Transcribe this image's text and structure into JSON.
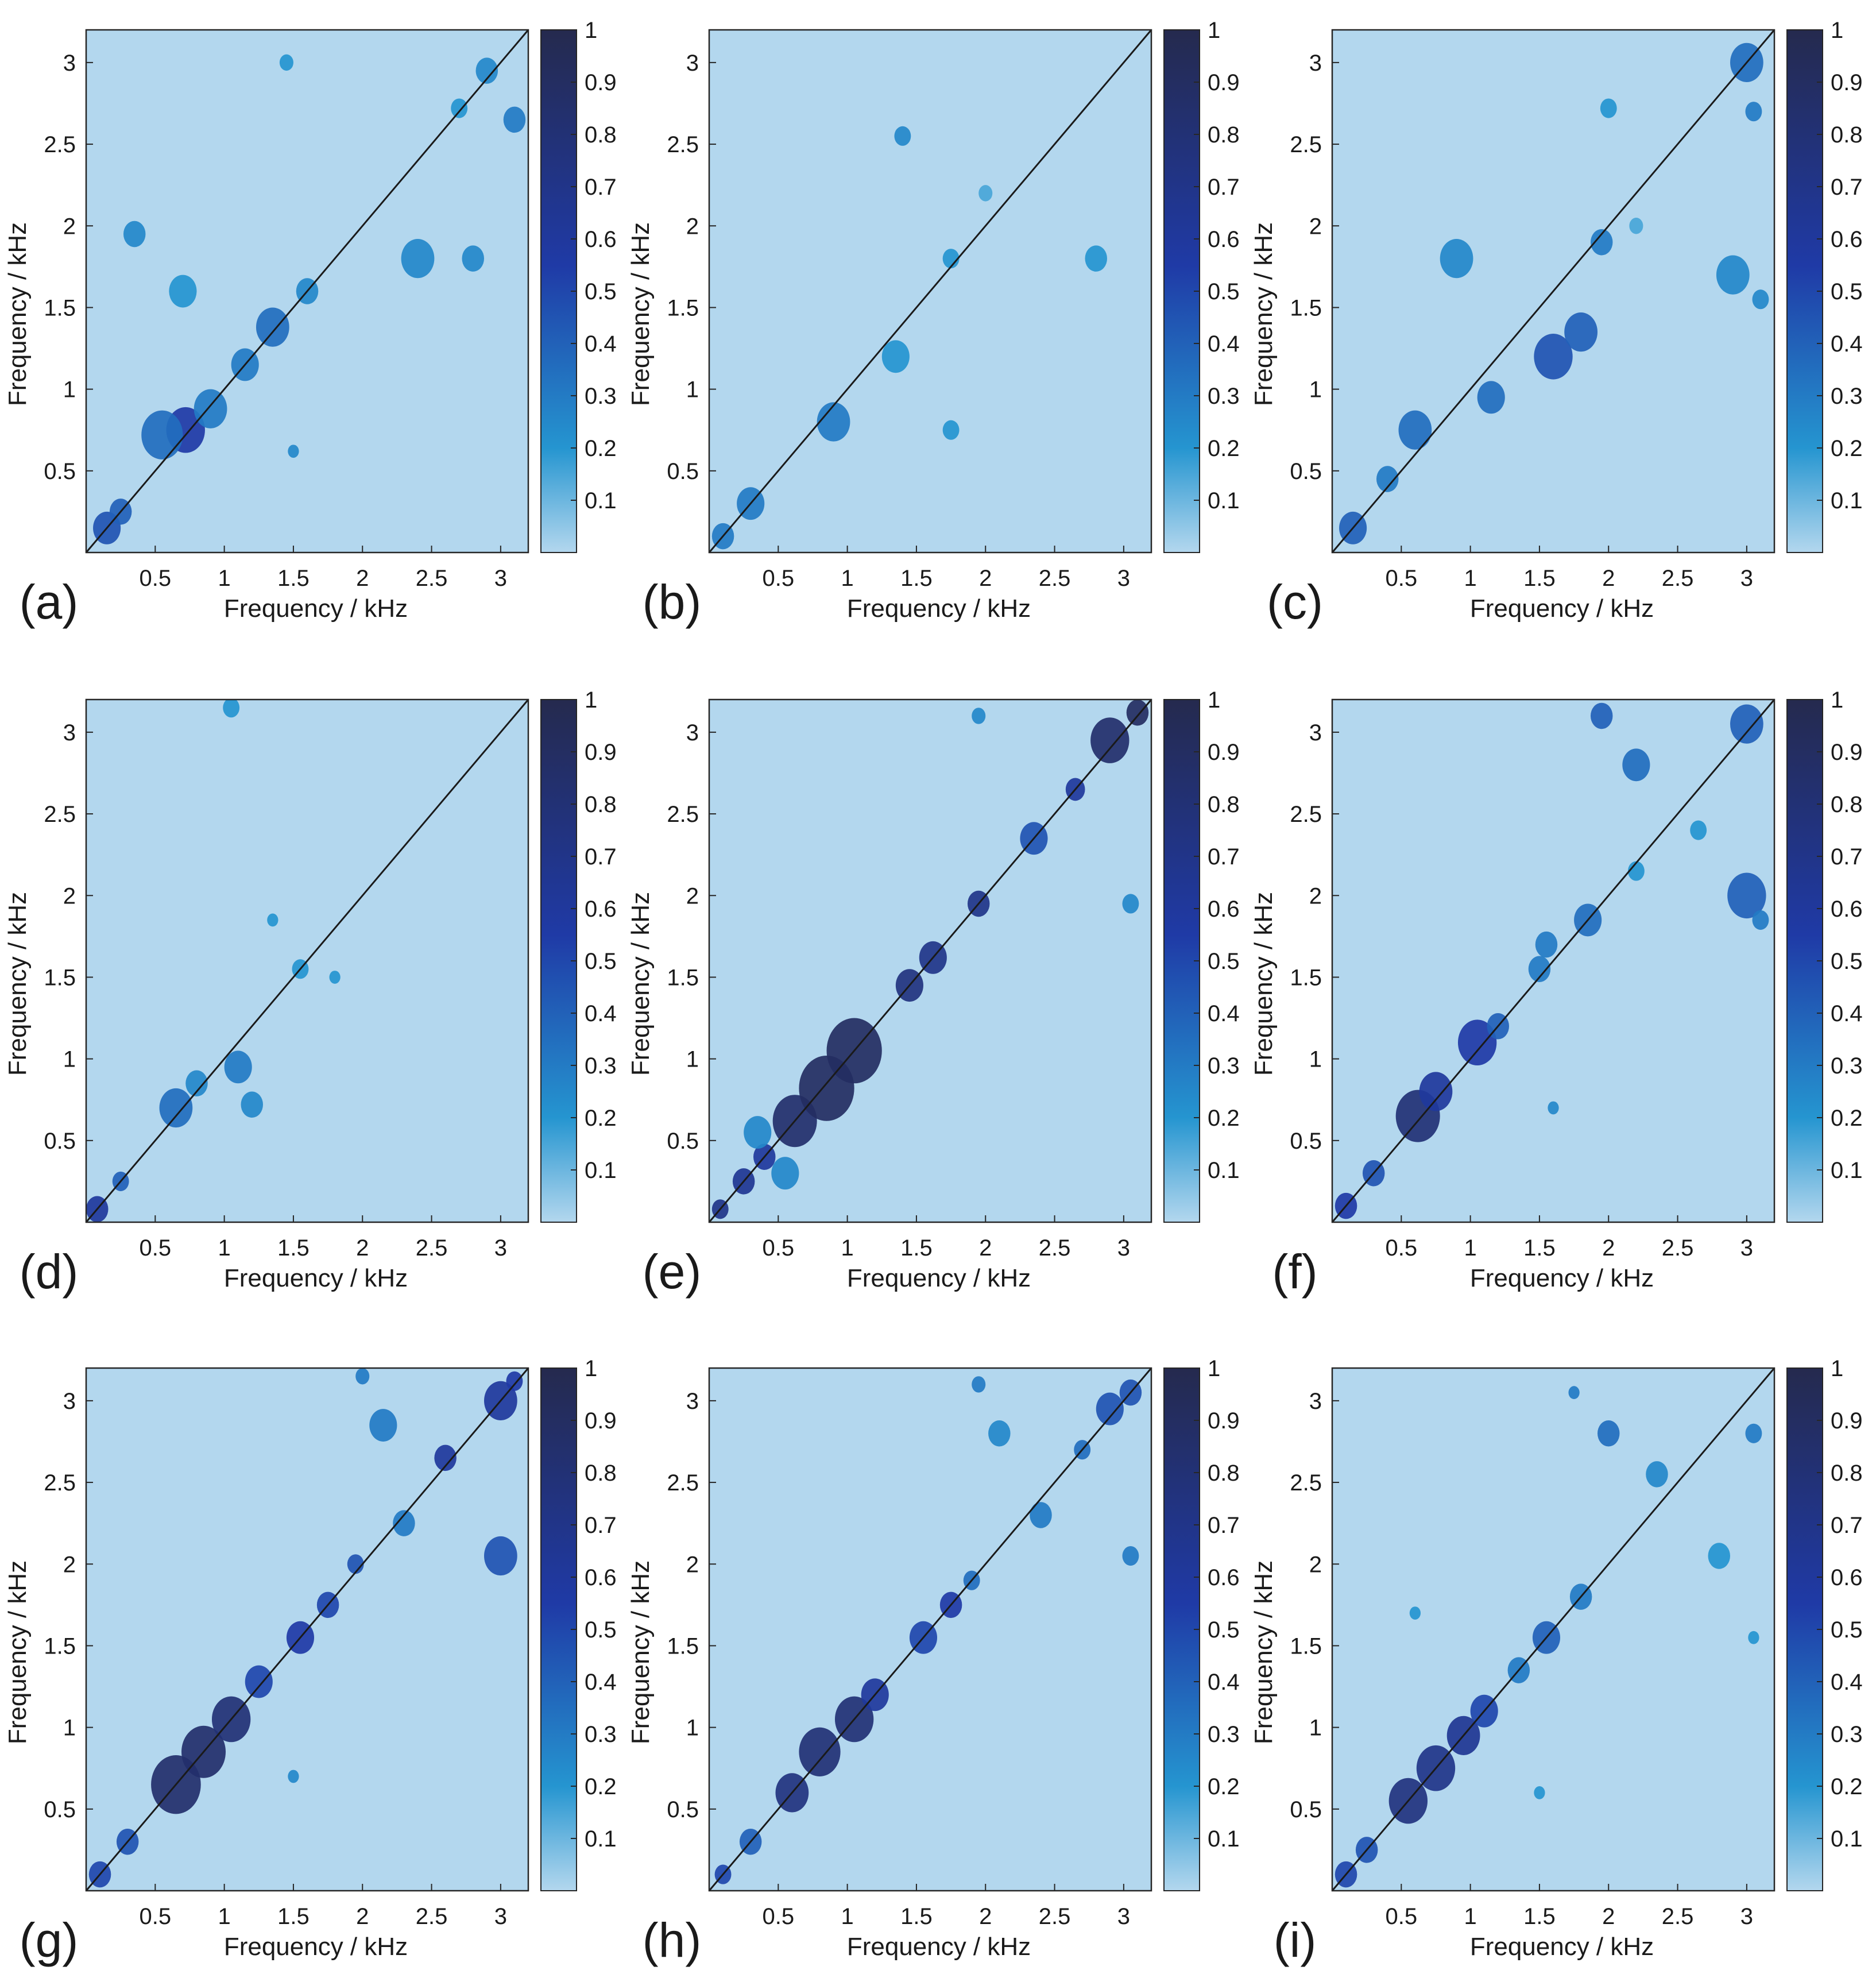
{
  "chart_data": {
    "type": "heatmap",
    "x_label": "Frequency / kHz",
    "y_label": "Frequency / kHz",
    "x_ticks": [
      "0.5",
      "1",
      "1.5",
      "2",
      "2.5",
      "3"
    ],
    "y_ticks": [
      "0.5",
      "1",
      "1.5",
      "2",
      "2.5",
      "3"
    ],
    "tick_values": [
      0.5,
      1,
      1.5,
      2,
      2.5,
      3
    ],
    "axis_range": [
      0,
      3.2
    ],
    "colorbar": {
      "ticks": [
        "0.1",
        "0.2",
        "0.3",
        "0.4",
        "0.5",
        "0.6",
        "0.7",
        "0.8",
        "0.9",
        "1"
      ],
      "tick_values": [
        0.1,
        0.2,
        0.3,
        0.4,
        0.5,
        0.6,
        0.7,
        0.8,
        0.9,
        1.0
      ],
      "range": [
        0,
        1
      ],
      "colors": [
        "#b3d7ee",
        "#2595d0",
        "#1f3aa6",
        "#252a4e"
      ]
    },
    "diagonal_line": true,
    "panels": [
      {
        "label": "(a)",
        "blobs": [
          [
            0.15,
            0.15,
            0.1,
            0.45
          ],
          [
            0.25,
            0.25,
            0.08,
            0.4
          ],
          [
            0.72,
            0.75,
            0.14,
            0.55
          ],
          [
            0.55,
            0.72,
            0.15,
            0.35
          ],
          [
            0.9,
            0.88,
            0.12,
            0.3
          ],
          [
            1.15,
            1.15,
            0.1,
            0.3
          ],
          [
            1.35,
            1.38,
            0.12,
            0.35
          ],
          [
            1.6,
            1.6,
            0.08,
            0.25
          ],
          [
            0.35,
            1.95,
            0.08,
            0.25
          ],
          [
            0.7,
            1.6,
            0.1,
            0.2
          ],
          [
            2.4,
            1.8,
            0.12,
            0.25
          ],
          [
            2.8,
            1.8,
            0.08,
            0.25
          ],
          [
            3.1,
            2.65,
            0.08,
            0.3
          ],
          [
            2.7,
            2.72,
            0.06,
            0.2
          ],
          [
            1.45,
            3.0,
            0.05,
            0.2
          ],
          [
            2.9,
            2.95,
            0.08,
            0.25
          ],
          [
            1.5,
            0.62,
            0.04,
            0.25
          ]
        ]
      },
      {
        "label": "(b)",
        "blobs": [
          [
            0.1,
            0.1,
            0.08,
            0.3
          ],
          [
            0.3,
            0.3,
            0.1,
            0.3
          ],
          [
            0.9,
            0.8,
            0.12,
            0.3
          ],
          [
            1.35,
            1.2,
            0.1,
            0.2
          ],
          [
            1.4,
            2.55,
            0.06,
            0.25
          ],
          [
            1.75,
            1.8,
            0.06,
            0.2
          ],
          [
            2.8,
            1.8,
            0.08,
            0.2
          ],
          [
            1.75,
            0.75,
            0.06,
            0.2
          ],
          [
            2.0,
            2.2,
            0.05,
            0.15
          ]
        ]
      },
      {
        "label": "(c)",
        "blobs": [
          [
            0.15,
            0.15,
            0.1,
            0.4
          ],
          [
            0.4,
            0.45,
            0.08,
            0.3
          ],
          [
            0.6,
            0.75,
            0.12,
            0.35
          ],
          [
            1.15,
            0.95,
            0.1,
            0.35
          ],
          [
            1.6,
            1.2,
            0.14,
            0.45
          ],
          [
            1.8,
            1.35,
            0.12,
            0.4
          ],
          [
            1.95,
            1.9,
            0.08,
            0.3
          ],
          [
            0.9,
            1.8,
            0.12,
            0.25
          ],
          [
            2.9,
            1.7,
            0.12,
            0.25
          ],
          [
            3.1,
            1.55,
            0.06,
            0.25
          ],
          [
            2.0,
            2.72,
            0.06,
            0.2
          ],
          [
            3.05,
            2.7,
            0.06,
            0.3
          ],
          [
            3.0,
            3.0,
            0.12,
            0.35
          ],
          [
            2.2,
            2.0,
            0.05,
            0.15
          ]
        ]
      },
      {
        "label": "(d)",
        "blobs": [
          [
            0.08,
            0.08,
            0.08,
            0.6
          ],
          [
            0.25,
            0.25,
            0.06,
            0.4
          ],
          [
            0.65,
            0.7,
            0.12,
            0.35
          ],
          [
            0.8,
            0.85,
            0.08,
            0.25
          ],
          [
            1.1,
            0.95,
            0.1,
            0.3
          ],
          [
            1.2,
            0.72,
            0.08,
            0.25
          ],
          [
            1.55,
            1.55,
            0.06,
            0.2
          ],
          [
            1.35,
            1.85,
            0.04,
            0.2
          ],
          [
            1.8,
            1.5,
            0.04,
            0.2
          ],
          [
            1.05,
            3.15,
            0.06,
            0.2
          ]
        ]
      },
      {
        "label": "(e)",
        "blobs": [
          [
            0.08,
            0.08,
            0.06,
            0.7
          ],
          [
            0.25,
            0.25,
            0.08,
            0.65
          ],
          [
            0.4,
            0.4,
            0.08,
            0.6
          ],
          [
            0.62,
            0.62,
            0.16,
            0.85
          ],
          [
            0.85,
            0.82,
            0.2,
            0.9
          ],
          [
            1.05,
            1.05,
            0.2,
            0.9
          ],
          [
            1.45,
            1.45,
            0.1,
            0.75
          ],
          [
            1.62,
            1.62,
            0.1,
            0.7
          ],
          [
            1.95,
            1.95,
            0.08,
            0.7
          ],
          [
            2.35,
            2.35,
            0.1,
            0.45
          ],
          [
            2.65,
            2.65,
            0.07,
            0.6
          ],
          [
            2.9,
            2.95,
            0.14,
            0.85
          ],
          [
            3.1,
            3.12,
            0.08,
            0.9
          ],
          [
            1.95,
            3.1,
            0.05,
            0.25
          ],
          [
            3.05,
            1.95,
            0.06,
            0.25
          ],
          [
            0.35,
            0.55,
            0.1,
            0.25
          ],
          [
            0.55,
            0.3,
            0.1,
            0.25
          ]
        ]
      },
      {
        "label": "(f)",
        "blobs": [
          [
            0.1,
            0.1,
            0.08,
            0.55
          ],
          [
            0.3,
            0.3,
            0.08,
            0.45
          ],
          [
            0.62,
            0.65,
            0.16,
            0.8
          ],
          [
            0.75,
            0.8,
            0.12,
            0.6
          ],
          [
            1.05,
            1.1,
            0.14,
            0.55
          ],
          [
            1.2,
            1.2,
            0.08,
            0.4
          ],
          [
            1.5,
            1.55,
            0.08,
            0.3
          ],
          [
            1.55,
            1.7,
            0.08,
            0.3
          ],
          [
            1.85,
            1.85,
            0.1,
            0.35
          ],
          [
            2.2,
            2.15,
            0.06,
            0.2
          ],
          [
            3.0,
            2.0,
            0.14,
            0.4
          ],
          [
            3.1,
            1.85,
            0.06,
            0.3
          ],
          [
            2.2,
            2.8,
            0.1,
            0.35
          ],
          [
            1.95,
            3.1,
            0.08,
            0.4
          ],
          [
            3.0,
            3.05,
            0.12,
            0.4
          ],
          [
            2.65,
            2.4,
            0.06,
            0.2
          ],
          [
            1.6,
            0.7,
            0.04,
            0.25
          ]
        ]
      },
      {
        "label": "(g)",
        "blobs": [
          [
            0.1,
            0.1,
            0.08,
            0.5
          ],
          [
            0.3,
            0.3,
            0.08,
            0.45
          ],
          [
            0.65,
            0.65,
            0.18,
            0.85
          ],
          [
            0.85,
            0.85,
            0.16,
            0.85
          ],
          [
            1.05,
            1.05,
            0.14,
            0.8
          ],
          [
            1.25,
            1.28,
            0.1,
            0.5
          ],
          [
            1.55,
            1.55,
            0.1,
            0.55
          ],
          [
            1.75,
            1.75,
            0.08,
            0.5
          ],
          [
            1.95,
            2.0,
            0.06,
            0.45
          ],
          [
            2.3,
            2.25,
            0.08,
            0.3
          ],
          [
            2.6,
            2.65,
            0.08,
            0.6
          ],
          [
            3.0,
            3.0,
            0.12,
            0.6
          ],
          [
            3.1,
            3.12,
            0.06,
            0.55
          ],
          [
            3.0,
            2.05,
            0.12,
            0.45
          ],
          [
            2.15,
            2.85,
            0.1,
            0.3
          ],
          [
            2.0,
            3.15,
            0.05,
            0.3
          ],
          [
            1.5,
            0.7,
            0.04,
            0.25
          ]
        ]
      },
      {
        "label": "(h)",
        "blobs": [
          [
            0.1,
            0.1,
            0.06,
            0.5
          ],
          [
            0.3,
            0.3,
            0.08,
            0.4
          ],
          [
            0.6,
            0.6,
            0.12,
            0.75
          ],
          [
            0.8,
            0.85,
            0.15,
            0.8
          ],
          [
            1.05,
            1.05,
            0.14,
            0.8
          ],
          [
            1.2,
            1.2,
            0.1,
            0.6
          ],
          [
            1.55,
            1.55,
            0.1,
            0.5
          ],
          [
            1.75,
            1.75,
            0.08,
            0.55
          ],
          [
            1.9,
            1.9,
            0.06,
            0.35
          ],
          [
            2.4,
            2.3,
            0.08,
            0.3
          ],
          [
            2.7,
            2.7,
            0.06,
            0.35
          ],
          [
            2.9,
            2.95,
            0.1,
            0.45
          ],
          [
            3.05,
            3.05,
            0.08,
            0.45
          ],
          [
            3.05,
            2.05,
            0.06,
            0.3
          ],
          [
            2.1,
            2.8,
            0.08,
            0.25
          ],
          [
            1.95,
            3.1,
            0.05,
            0.3
          ]
        ]
      },
      {
        "label": "(i)",
        "blobs": [
          [
            0.1,
            0.1,
            0.08,
            0.5
          ],
          [
            0.25,
            0.25,
            0.08,
            0.45
          ],
          [
            0.55,
            0.55,
            0.14,
            0.75
          ],
          [
            0.75,
            0.75,
            0.14,
            0.7
          ],
          [
            0.95,
            0.95,
            0.12,
            0.65
          ],
          [
            1.1,
            1.1,
            0.1,
            0.5
          ],
          [
            1.35,
            1.35,
            0.08,
            0.3
          ],
          [
            1.55,
            1.55,
            0.1,
            0.4
          ],
          [
            1.8,
            1.8,
            0.08,
            0.3
          ],
          [
            2.0,
            2.8,
            0.08,
            0.35
          ],
          [
            1.75,
            3.05,
            0.04,
            0.3
          ],
          [
            2.35,
            2.55,
            0.08,
            0.25
          ],
          [
            2.8,
            2.05,
            0.08,
            0.2
          ],
          [
            3.05,
            2.8,
            0.06,
            0.3
          ],
          [
            3.05,
            1.55,
            0.04,
            0.2
          ],
          [
            0.6,
            1.7,
            0.04,
            0.2
          ],
          [
            1.5,
            0.6,
            0.04,
            0.2
          ]
        ]
      }
    ]
  }
}
